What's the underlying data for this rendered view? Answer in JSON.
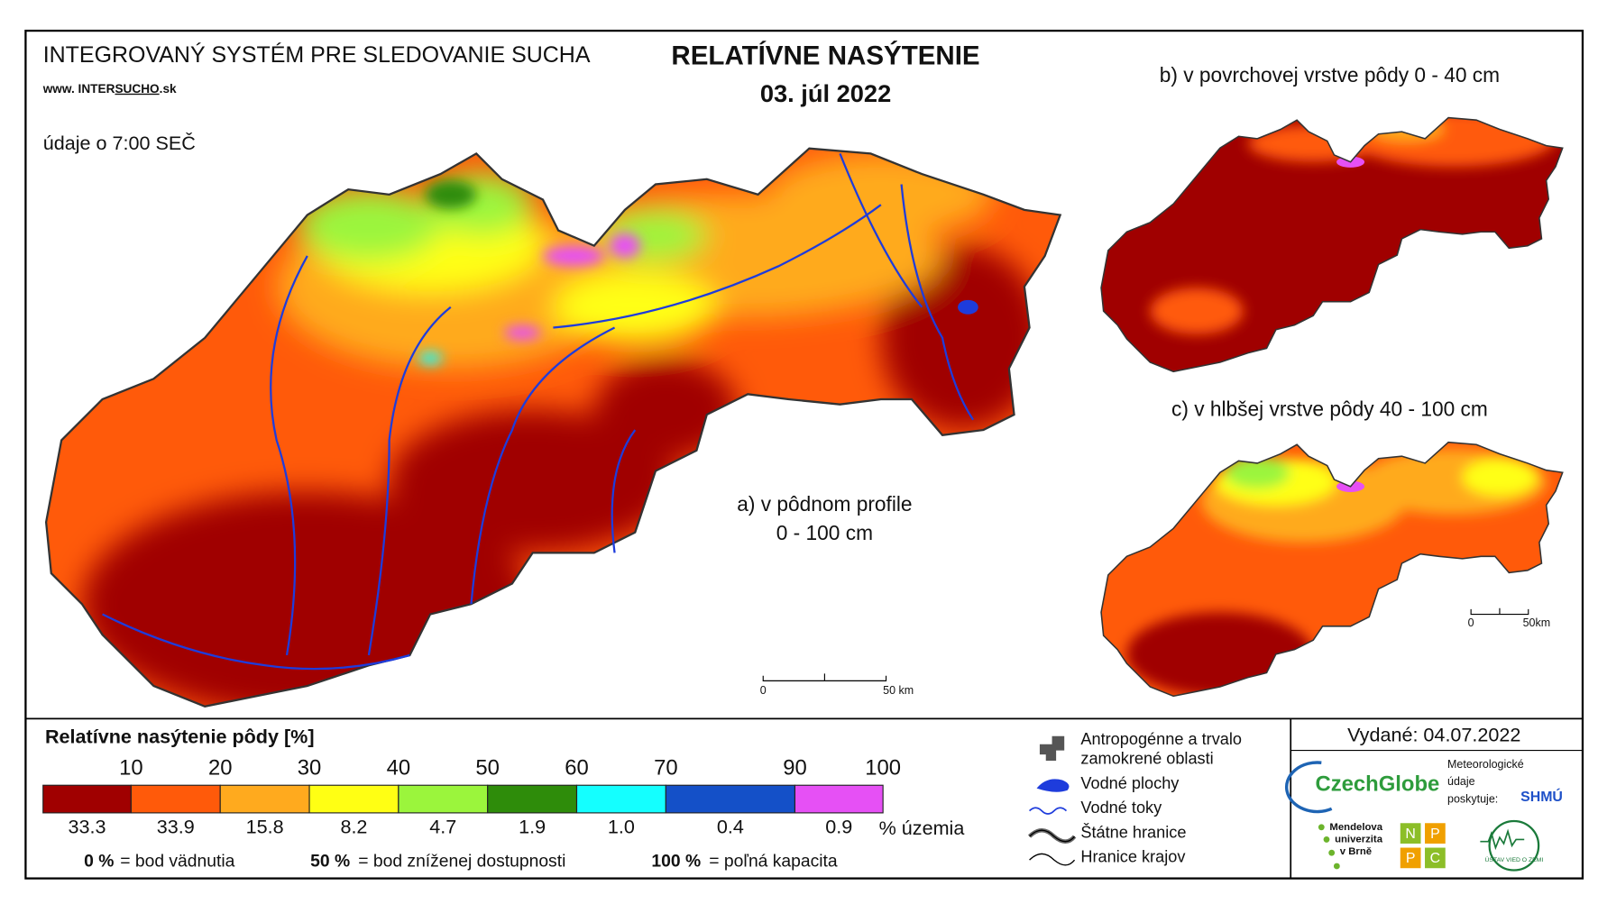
{
  "header": {
    "system": "INTEGROVANÝ SYSTÉM PRE SLEDOVANIE SUCHA",
    "url_prefix": "www. INTER",
    "url_bold": "SUCHO",
    "url_suffix": ".sk",
    "time_note": "údaje o 7:00 SEČ"
  },
  "title": "RELATÍVNE NASÝTENIE",
  "date": "03. júl 2022",
  "maps": {
    "a_line1": "a) v pôdnom profile",
    "a_line2": "0 - 100 cm",
    "b": "b) v povrchovej vrstve pôdy 0 - 40 cm",
    "c": "c) v hlbšej vrstve pôdy 40 - 100 cm"
  },
  "scale_main": {
    "start": "0",
    "end": "50 km"
  },
  "scale_small": {
    "start": "0",
    "end": "50km"
  },
  "legend": {
    "title": "Relatívne nasýtenie pôdy [%]",
    "breaks": [
      10,
      20,
      30,
      40,
      50,
      60,
      70,
      90,
      100
    ],
    "classes": [
      {
        "color": "#a00000",
        "share": "33.3"
      },
      {
        "color": "#ff5a0a",
        "share": "33.9"
      },
      {
        "color": "#ffaa1e",
        "share": "15.8"
      },
      {
        "color": "#ffff14",
        "share": "8.2"
      },
      {
        "color": "#9bf53c",
        "share": "4.7"
      },
      {
        "color": "#2e8c0a",
        "share": "1.9"
      },
      {
        "color": "#14ffff",
        "share": "1.0"
      },
      {
        "color": "#1450c8",
        "share": "0.4"
      },
      {
        "color": "#e650f5",
        "share": "0.9"
      }
    ],
    "share_unit": "% územia",
    "notes": [
      {
        "value": "0 %",
        "text": "= bod vädnutia"
      },
      {
        "value": "50 %",
        "text": "= bod zníženej dostupnosti"
      },
      {
        "value": "100 %",
        "text": "= poľná kapacita"
      }
    ]
  },
  "symbols": {
    "anthropogenic": [
      "Antropogénne a trvalo",
      "zamokrené oblasti"
    ],
    "water_bodies": "Vodné plochy",
    "rivers": "Vodné toky",
    "state_border": "Štátne hranice",
    "regions": "Hranice krajov"
  },
  "issued": "Vydané: 04.07.2022",
  "logos": {
    "czechglobe": "CzechGlobe",
    "meteo": [
      "Meteorologické",
      "údaje",
      "poskytuje:"
    ],
    "shmu": "SHMÚ",
    "mendel": [
      "Mendelova",
      "univerzita",
      "v Brně"
    ],
    "nppc": [
      "N",
      "P",
      "P",
      "C"
    ],
    "uvz": "ÚSTAV VIED O ZEMI"
  }
}
